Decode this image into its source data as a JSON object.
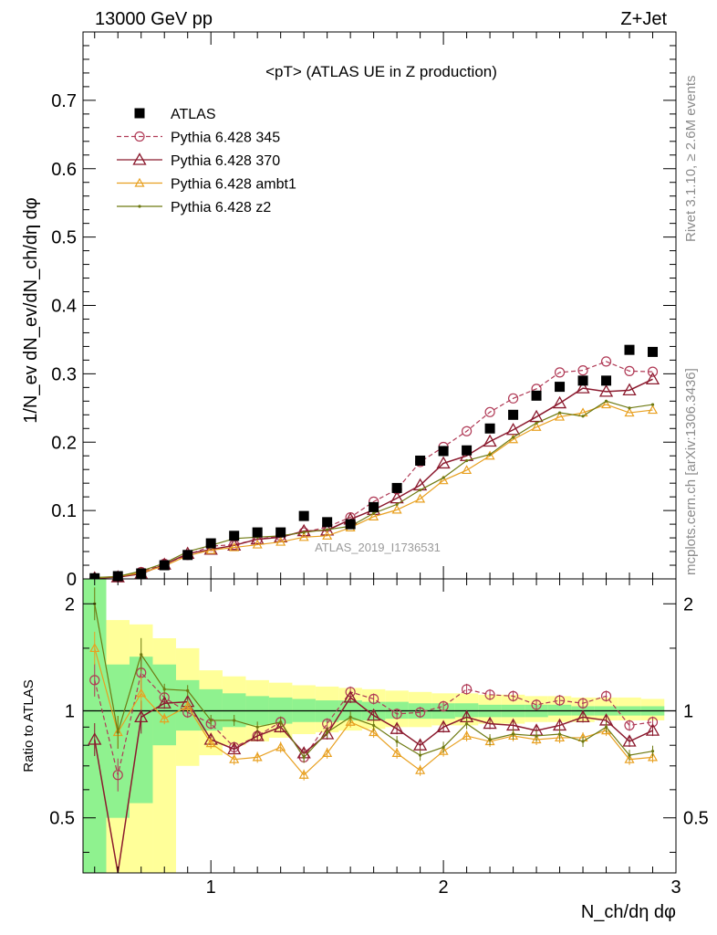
{
  "header": {
    "left": "13000 GeV pp",
    "right": "Z+Jet"
  },
  "side": {
    "rivet": "Rivet 3.1.10, ≥ 2.6M events",
    "mcplots": "mcplots.cern.ch [arXiv:1306.3436]"
  },
  "watermark": "ATLAS_2019_I1736531",
  "chart_data": [
    {
      "type": "scatter",
      "panel": "main",
      "title": "<pT> (ATLAS UE in Z production)",
      "ylabel": "1/N_ev dN_ev/dN_ch/dη dφ",
      "xlim": [
        0.45,
        3.0
      ],
      "ylim": [
        0,
        0.8
      ],
      "yticks": [
        "0",
        "0.1",
        "0.2",
        "0.3",
        "0.4",
        "0.5",
        "0.6",
        "0.7"
      ],
      "x": [
        0.5,
        0.6,
        0.7,
        0.8,
        0.9,
        1.0,
        1.1,
        1.2,
        1.3,
        1.4,
        1.5,
        1.6,
        1.7,
        1.8,
        1.9,
        2.0,
        2.1,
        2.2,
        2.3,
        2.4,
        2.5,
        2.6,
        2.7,
        2.8,
        2.9
      ],
      "legend_position": "top-left",
      "series": [
        {
          "name": "ATLAS",
          "color": "#000000",
          "style": "square",
          "values": [
            0.001,
            0.004,
            0.008,
            0.02,
            0.035,
            0.052,
            0.063,
            0.068,
            0.068,
            0.092,
            0.083,
            0.08,
            0.105,
            0.133,
            0.173,
            0.187,
            0.188,
            0.22,
            0.24,
            0.268,
            0.281,
            0.29,
            0.29,
            0.335,
            0.332
          ]
        },
        {
          "name": "Pythia 6.428 345",
          "color": "#b03a56",
          "style": "circle-dashed",
          "values": [
            0.001,
            0.003,
            0.01,
            0.022,
            0.035,
            0.048,
            0.05,
            0.058,
            0.063,
            0.068,
            0.076,
            0.09,
            0.113,
            0.131,
            0.171,
            0.193,
            0.216,
            0.244,
            0.264,
            0.278,
            0.302,
            0.305,
            0.318,
            0.304,
            0.303
          ]
        },
        {
          "name": "Pythia 6.428 370",
          "color": "#8b1a2e",
          "style": "triangle",
          "values": [
            0.001,
            0.0025,
            0.0075,
            0.021,
            0.037,
            0.043,
            0.049,
            0.058,
            0.061,
            0.07,
            0.071,
            0.087,
            0.101,
            0.118,
            0.137,
            0.169,
            0.18,
            0.201,
            0.218,
            0.237,
            0.257,
            0.279,
            0.274,
            0.276,
            0.292
          ]
        },
        {
          "name": "Pythia 6.428 ambt1",
          "color": "#e8a020",
          "style": "triangle-small",
          "values": [
            0.0015,
            0.0035,
            0.009,
            0.019,
            0.034,
            0.042,
            0.046,
            0.05,
            0.054,
            0.061,
            0.063,
            0.075,
            0.091,
            0.101,
            0.117,
            0.144,
            0.159,
            0.18,
            0.204,
            0.222,
            0.237,
            0.243,
            0.255,
            0.243,
            0.247
          ]
        },
        {
          "name": "Pythia 6.428 z2",
          "color": "#6e7a12",
          "style": "dot",
          "values": [
            0.002,
            0.0035,
            0.0115,
            0.023,
            0.04,
            0.049,
            0.059,
            0.061,
            0.063,
            0.068,
            0.072,
            0.077,
            0.096,
            0.109,
            0.13,
            0.148,
            0.173,
            0.182,
            0.207,
            0.228,
            0.243,
            0.238,
            0.26,
            0.25,
            0.255
          ]
        }
      ]
    },
    {
      "type": "line",
      "panel": "ratio",
      "ylabel": "Ratio to ATLAS",
      "xlabel": "N_ch/dη dφ",
      "xlim": [
        0.45,
        3.0
      ],
      "ylim": [
        0.35,
        2.35
      ],
      "yscale": "log",
      "yticks": [
        "0.5",
        "1",
        "2"
      ],
      "xticks": [
        "1",
        "2",
        "3"
      ],
      "bin_edges": [
        0.45,
        0.55,
        0.65,
        0.75,
        0.85,
        0.95,
        1.05,
        1.15,
        1.25,
        1.35,
        1.45,
        1.55,
        1.65,
        1.75,
        1.85,
        1.95,
        2.05,
        2.15,
        2.25,
        2.35,
        2.45,
        2.55,
        2.65,
        2.75,
        2.85,
        2.95
      ],
      "band_yellow_low": [
        0.3,
        0.3,
        0.3,
        0.3,
        0.7,
        0.75,
        0.8,
        0.82,
        0.84,
        0.86,
        0.87,
        0.88,
        0.89,
        0.9,
        0.9,
        0.91,
        0.91,
        0.92,
        0.92,
        0.93,
        0.93,
        0.93,
        0.94,
        0.94,
        0.94
      ],
      "band_yellow_high": [
        2.6,
        1.8,
        1.75,
        1.6,
        1.5,
        1.3,
        1.25,
        1.22,
        1.2,
        1.18,
        1.17,
        1.16,
        1.15,
        1.14,
        1.13,
        1.12,
        1.12,
        1.11,
        1.11,
        1.1,
        1.1,
        1.09,
        1.09,
        1.09,
        1.08
      ],
      "band_green_low": [
        0.3,
        0.5,
        0.55,
        0.8,
        0.88,
        0.88,
        0.9,
        0.91,
        0.92,
        0.93,
        0.93,
        0.94,
        0.94,
        0.95,
        0.95,
        0.95,
        0.96,
        0.96,
        0.96,
        0.96,
        0.97,
        0.97,
        0.97,
        0.97,
        0.97
      ],
      "band_green_high": [
        2.6,
        1.35,
        1.42,
        1.35,
        1.22,
        1.15,
        1.12,
        1.1,
        1.09,
        1.08,
        1.07,
        1.07,
        1.06,
        1.06,
        1.05,
        1.05,
        1.05,
        1.04,
        1.04,
        1.04,
        1.04,
        1.03,
        1.03,
        1.03,
        1.03
      ],
      "series": [
        {
          "name": "Pythia 6.428 345",
          "color": "#b03a56",
          "values": [
            1.22,
            0.66,
            1.28,
            1.09,
            0.99,
            0.92,
            0.79,
            0.85,
            0.93,
            0.74,
            0.92,
            1.13,
            1.08,
            0.98,
            0.99,
            1.03,
            1.15,
            1.11,
            1.1,
            1.04,
            1.07,
            1.05,
            1.1,
            0.91,
            0.93
          ]
        },
        {
          "name": "Pythia 6.428 370",
          "color": "#8b1a2e",
          "values": [
            0.83,
            0.3,
            0.96,
            1.05,
            1.06,
            0.83,
            0.78,
            0.85,
            0.9,
            0.76,
            0.86,
            1.09,
            0.97,
            0.89,
            0.8,
            0.9,
            0.96,
            0.92,
            0.91,
            0.88,
            0.91,
            0.96,
            0.94,
            0.82,
            0.88
          ]
        },
        {
          "name": "Pythia 6.428 ambt1",
          "color": "#e8a020",
          "values": [
            1.5,
            0.87,
            1.12,
            0.95,
            1.03,
            0.81,
            0.73,
            0.74,
            0.79,
            0.66,
            0.76,
            0.93,
            0.87,
            0.76,
            0.68,
            0.77,
            0.85,
            0.82,
            0.85,
            0.83,
            0.84,
            0.84,
            0.88,
            0.73,
            0.74
          ]
        },
        {
          "name": "Pythia 6.428 z2",
          "color": "#6e7a12",
          "values": [
            2.0,
            0.87,
            1.44,
            1.15,
            1.14,
            0.94,
            0.94,
            0.9,
            0.93,
            0.74,
            0.87,
            0.96,
            0.91,
            0.82,
            0.75,
            0.79,
            0.92,
            0.83,
            0.86,
            0.85,
            0.86,
            0.82,
            0.9,
            0.75,
            0.77
          ]
        }
      ]
    }
  ]
}
